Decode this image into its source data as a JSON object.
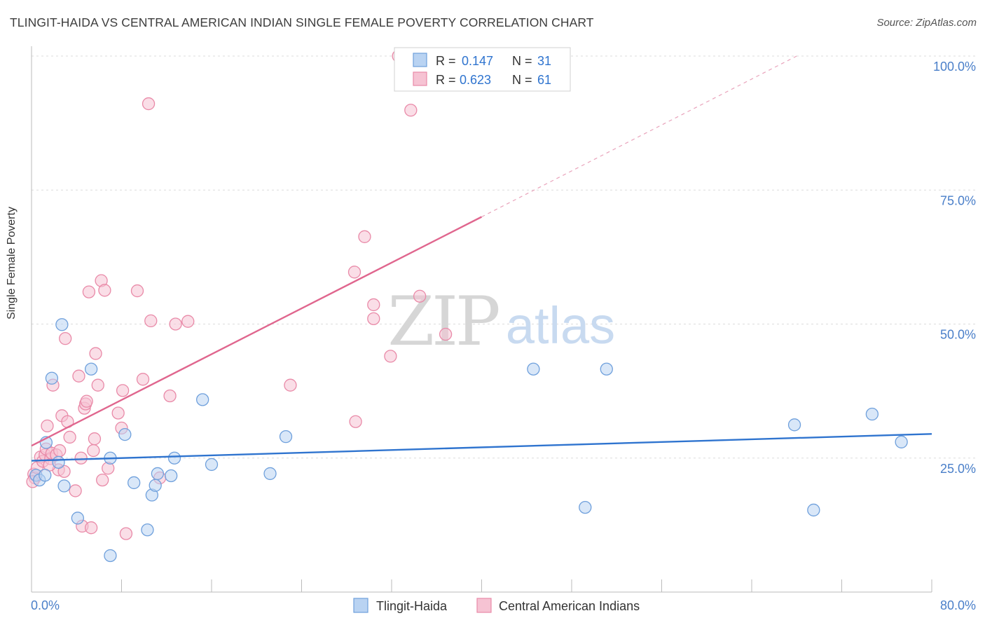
{
  "header": {
    "title": "TLINGIT-HAIDA VS CENTRAL AMERICAN INDIAN SINGLE FEMALE POVERTY CORRELATION CHART",
    "source": "Source: ZipAtlas.com"
  },
  "watermark": {
    "zip": "ZIP",
    "atlas": "atlas"
  },
  "colors": {
    "blue": "#6fa0dc",
    "blue_fill": "#b9d3f2",
    "blue_line": "#2f74cf",
    "pink": "#e98aa8",
    "pink_fill": "#f6c3d3",
    "pink_line": "#e0668e",
    "axis_label": "#4a7fc9",
    "grid": "#dcdcdc"
  },
  "chart_data": {
    "type": "scatter",
    "title": "TLINGIT-HAIDA VS CENTRAL AMERICAN INDIAN SINGLE FEMALE POVERTY CORRELATION CHART",
    "xlabel": "",
    "ylabel": "Single Female Poverty",
    "xlim": [
      0,
      80
    ],
    "ylim": [
      0,
      100
    ],
    "x_tick_labels": [
      "0.0%",
      "80.0%"
    ],
    "y_ticks": [
      25,
      50,
      75,
      100
    ],
    "y_tick_labels": [
      "25.0%",
      "50.0%",
      "75.0%",
      "100.0%"
    ],
    "legend_top": [
      {
        "r_label": "R =",
        "r_value": "0.147",
        "n_label": "N =",
        "n_value": "31"
      },
      {
        "r_label": "R =",
        "r_value": "0.623",
        "n_label": "N =",
        "n_value": "61"
      }
    ],
    "series": [
      {
        "name": "Tlingit-Haida",
        "color": "blue",
        "trend": {
          "x0": 0,
          "y0": 24.5,
          "x1": 80,
          "y1": 29.5
        },
        "points": [
          [
            0.4,
            21.8
          ],
          [
            0.7,
            20.9
          ],
          [
            1.2,
            21.8
          ],
          [
            1.3,
            27.9
          ],
          [
            1.8,
            39.9
          ],
          [
            2.4,
            24.2
          ],
          [
            2.7,
            49.9
          ],
          [
            2.9,
            19.8
          ],
          [
            4.1,
            13.8
          ],
          [
            5.3,
            41.6
          ],
          [
            7.0,
            6.8
          ],
          [
            7.0,
            25.0
          ],
          [
            8.3,
            29.4
          ],
          [
            9.1,
            20.4
          ],
          [
            10.3,
            11.6
          ],
          [
            10.7,
            18.1
          ],
          [
            11.0,
            19.9
          ],
          [
            11.2,
            22.1
          ],
          [
            12.4,
            21.7
          ],
          [
            12.7,
            25.0
          ],
          [
            15.2,
            35.9
          ],
          [
            16.0,
            23.8
          ],
          [
            21.2,
            22.1
          ],
          [
            22.6,
            29.0
          ],
          [
            44.6,
            41.6
          ],
          [
            49.2,
            15.8
          ],
          [
            51.1,
            41.6
          ],
          [
            67.8,
            31.2
          ],
          [
            69.5,
            15.3
          ],
          [
            74.7,
            33.2
          ],
          [
            77.3,
            28.0
          ]
        ]
      },
      {
        "name": "Central American Indians",
        "color": "pink",
        "trend": {
          "x0": 0,
          "y0": 27.3,
          "x1": 40,
          "y1": 70.0
        },
        "trend_ext": {
          "x0": 40,
          "y0": 70.0,
          "x1": 68,
          "y1": 100
        },
        "points": [
          [
            0.2,
            22.0
          ],
          [
            0.3,
            21.3
          ],
          [
            0.5,
            23.2
          ],
          [
            0.8,
            25.2
          ],
          [
            1.0,
            24.4
          ],
          [
            1.2,
            25.6
          ],
          [
            1.3,
            26.7
          ],
          [
            1.4,
            31.0
          ],
          [
            1.7,
            24.9
          ],
          [
            1.8,
            25.9
          ],
          [
            1.9,
            38.6
          ],
          [
            2.2,
            25.6
          ],
          [
            2.4,
            22.8
          ],
          [
            2.5,
            26.4
          ],
          [
            2.7,
            32.9
          ],
          [
            2.9,
            22.5
          ],
          [
            3.0,
            47.3
          ],
          [
            3.2,
            31.8
          ],
          [
            3.4,
            28.9
          ],
          [
            3.9,
            18.9
          ],
          [
            4.2,
            40.3
          ],
          [
            4.4,
            25.0
          ],
          [
            4.5,
            12.3
          ],
          [
            4.7,
            34.3
          ],
          [
            4.8,
            35.1
          ],
          [
            4.9,
            35.6
          ],
          [
            5.1,
            56.0
          ],
          [
            5.5,
            26.4
          ],
          [
            5.6,
            28.6
          ],
          [
            5.7,
            44.5
          ],
          [
            5.9,
            38.6
          ],
          [
            6.2,
            58.1
          ],
          [
            6.3,
            20.9
          ],
          [
            6.5,
            56.3
          ],
          [
            6.8,
            23.1
          ],
          [
            7.7,
            33.4
          ],
          [
            8.0,
            30.6
          ],
          [
            8.1,
            37.6
          ],
          [
            8.4,
            10.9
          ],
          [
            9.4,
            56.2
          ],
          [
            9.9,
            39.7
          ],
          [
            10.4,
            91.1
          ],
          [
            10.6,
            50.6
          ],
          [
            11.4,
            21.3
          ],
          [
            12.3,
            36.6
          ],
          [
            12.8,
            50.0
          ],
          [
            13.9,
            50.5
          ],
          [
            23.0,
            38.6
          ],
          [
            28.7,
            59.7
          ],
          [
            28.8,
            31.8
          ],
          [
            29.6,
            66.3
          ],
          [
            30.4,
            53.6
          ],
          [
            30.4,
            51.0
          ],
          [
            31.9,
            44.0
          ],
          [
            32.6,
            100.0
          ],
          [
            33.7,
            89.9
          ],
          [
            34.5,
            55.2
          ],
          [
            36.8,
            48.1
          ],
          [
            0.1,
            20.6
          ],
          [
            5.3,
            12.0
          ],
          [
            1.6,
            23.7
          ]
        ]
      }
    ]
  }
}
